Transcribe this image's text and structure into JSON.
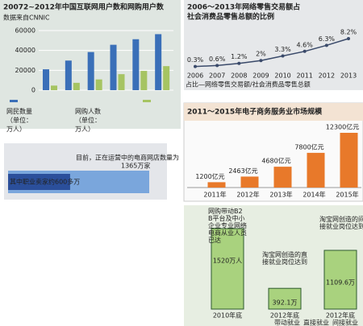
{
  "chart_data": [
    {
      "type": "bar",
      "title": "20072~2012年中国互联网用户数和网购用户数",
      "subtitle": "数据来自CNNIC",
      "categories": [
        null,
        null,
        null,
        null,
        null,
        null
      ],
      "series": [
        {
          "name": "网民数量（单位：万人）",
          "color": "#3a6fb8",
          "values": [
            21000,
            29800,
            38400,
            45700,
            51300,
            56400
          ]
        },
        {
          "name": "网购人数（单位：万人）",
          "color": "#a6c462",
          "values": [
            4600,
            7400,
            10800,
            16100,
            19400,
            24200
          ]
        }
      ],
      "ylim": [
        0,
        60000
      ],
      "yticks": [
        0,
        20000,
        40000,
        60000
      ],
      "grid": true
    },
    {
      "type": "line",
      "title": [
        "2006～2013年网络零售交易额占",
        "社会消费品零售总额的比例"
      ],
      "categories": [
        "2006",
        "2007",
        "2008",
        "2009",
        "2010",
        "2011",
        "2012",
        "2013"
      ],
      "values": [
        0.3,
        0.6,
        1.2,
        2,
        3.3,
        4.6,
        6.3,
        8.2
      ],
      "value_labels": [
        "0.3%",
        "0.6%",
        "1.2%",
        "2%",
        "3.3%",
        "4.6%",
        "6.3%",
        "8.2%"
      ],
      "color": "#3a4a6a",
      "caption": "占比—网络零售交易额/社会消费品零售总额"
    },
    {
      "type": "hbar",
      "items": [
        {
          "label": "其中职业卖家约600多万",
          "value": 600,
          "color": "#2b4f9b"
        },
        {
          "label": "目前，正在运营中的电商网店数量为",
          "value": 1365,
          "value_label": "1365万家",
          "color": "#7aa6dc"
        }
      ]
    },
    {
      "type": "bar",
      "title": "2011～2015年电子商务服务业市场规模",
      "categories": [
        "2011年",
        "2012年",
        "2013年",
        "2014年",
        "2015年"
      ],
      "values": [
        1200,
        2463,
        4680,
        7800,
        12300
      ],
      "value_labels": [
        "1200亿元",
        "2463亿元",
        "4680亿元",
        "7800亿元",
        "12300亿元"
      ],
      "color": "#e8792a"
    },
    {
      "type": "bar",
      "categories": [
        "2010年底",
        "2012年底",
        "2012年底"
      ],
      "annotations": [
        "网购带动B2B平台及中小企业专业网络电商从业人员已达",
        "淘宝网创造的直接就业岗位达到",
        "淘宝网创造的间接就业岗位达到"
      ],
      "values": [
        1520,
        392.1,
        1109.6
      ],
      "value_labels": [
        "1520万人",
        "392.1万",
        "1109.6万"
      ],
      "color": "#a9d27e",
      "legend": [
        "带动就业",
        "直接就业",
        "间接就业"
      ]
    }
  ]
}
